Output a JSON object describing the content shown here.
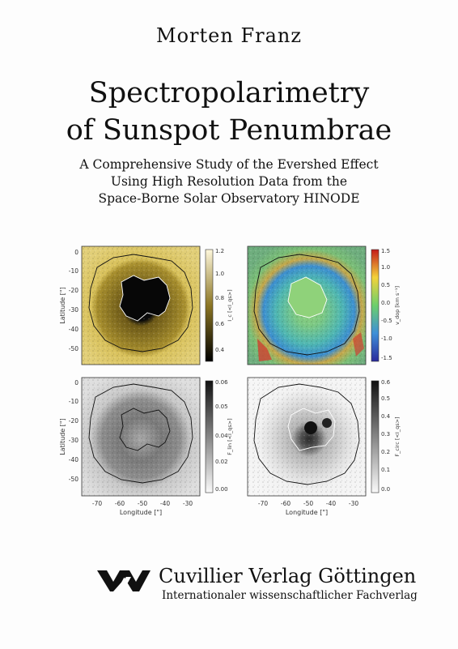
{
  "author": "Morten Franz",
  "title_line1": "Spectropolarimetry",
  "title_line2": "of Sunspot Penumbrae",
  "subtitle_lines": [
    "A Comprehensive Study of the Evershed Effect",
    "Using High Resolution Data from the",
    "Space-Borne Solar Observatory HINODE"
  ],
  "figure": {
    "y_axis_label": "Latitude [\"]",
    "x_axis_label": "Longitude [\"]",
    "y_ticks": [
      "0",
      "-10",
      "-20",
      "-30",
      "-40",
      "-50"
    ],
    "x_ticks": [
      "-70",
      "-60",
      "-50",
      "-40",
      "-30"
    ],
    "panels": [
      {
        "colorbar_label": "I_c [<I_qs>]",
        "ticks": [
          "1.2",
          "1.0",
          "0.8",
          "0.6",
          "0.4"
        ],
        "colormap": "gold"
      },
      {
        "colorbar_label": "v_dop [km s⁻¹]",
        "ticks": [
          "1.5",
          "1.0",
          "0.5",
          "0.0",
          "-0.5",
          "-1.0",
          "-1.5"
        ],
        "colormap": "rainbow"
      },
      {
        "colorbar_label": "F_lin [<I_qs>]",
        "ticks": [
          "0.06",
          "0.05",
          "0.04",
          "0.02",
          "0.00"
        ],
        "colormap": "grey"
      },
      {
        "colorbar_label": "F_circ [<I_qs>]",
        "ticks": [
          "0.6",
          "0.5",
          "0.4",
          "0.3",
          "0.2",
          "0.1",
          "0.0"
        ],
        "colormap": "grey-inverted"
      }
    ]
  },
  "publisher": {
    "name": "Cuvillier Verlag Göttingen",
    "tagline": "Internationaler wissenschaftlicher Fachverlag"
  }
}
